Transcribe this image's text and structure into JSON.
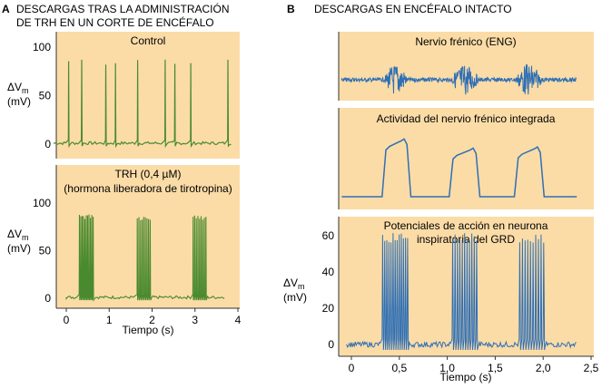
{
  "panel_a": {
    "letter": "A",
    "title_line1": "DESCARGAS TRAS LA ADMINISTRACIÓN",
    "title_line2": "DE TRH EN UN CORTE DE ENCÉFALO",
    "x_label": "Tiempo (s)",
    "x_ticks": [
      "0",
      "1",
      "2",
      "3",
      "4"
    ]
  },
  "panel_b": {
    "letter": "B",
    "title": "DESCARGAS EN ENCÉFALO INTACTO",
    "x_label": "Tiempo (s)",
    "x_ticks": [
      "0",
      "0,5",
      "1,0",
      "1,5",
      "2,0",
      "2,5"
    ]
  },
  "y_label": {
    "main": "ΔV",
    "sub": "m",
    "unit": "(mV)"
  },
  "colors": {
    "panel_bg": "#fbdca7",
    "green_trace": "#4a8a2e",
    "blue_trace": "#2f6fb5",
    "axis": "#333333"
  },
  "chart_data": [
    {
      "type": "line",
      "title": "Control",
      "xlabel": "",
      "ylabel": "ΔVm (mV)",
      "xlim": [
        0,
        3.8
      ],
      "ylim": [
        -5,
        100
      ],
      "yticks": [
        "0",
        "50",
        "100"
      ],
      "baseline": 1,
      "spike_peak": 88,
      "spike_times": [
        0.25,
        0.52,
        1.02,
        1.22,
        1.68,
        2.25,
        2.45,
        2.78,
        3.55
      ]
    },
    {
      "type": "line",
      "title_line1": "TRH (0,4 µM)",
      "title_line2": "(hormona liberadora de tirotropina)",
      "xlabel": "Tiempo (s)",
      "ylabel": "ΔVm (mV)",
      "xlim": [
        -0.2,
        3.8
      ],
      "ylim": [
        -5,
        130
      ],
      "yticks": [
        "0",
        "50",
        "100"
      ],
      "baseline": 1,
      "spike_peak": 88,
      "bursts": [
        {
          "start": 0.3,
          "end": 0.62,
          "n": 11
        },
        {
          "start": 1.65,
          "end": 1.95,
          "n": 9
        },
        {
          "start": 2.95,
          "end": 3.25,
          "n": 9
        }
      ]
    },
    {
      "type": "line",
      "title": "Nervio frénico (ENG)",
      "xlabel": "",
      "ylabel": "",
      "xlim": [
        -0.1,
        2.5
      ],
      "bursts": [
        {
          "start": 0.35,
          "end": 0.58
        },
        {
          "start": 1.05,
          "end": 1.32
        },
        {
          "start": 1.72,
          "end": 1.98
        }
      ]
    },
    {
      "type": "line",
      "title": "Actividad del nervio frénico integrada",
      "xlabel": "",
      "ylabel": "",
      "xlim": [
        -0.1,
        2.5
      ],
      "bursts": [
        {
          "start": 0.32,
          "end": 0.58,
          "peak_level": 0.95
        },
        {
          "start": 1.02,
          "end": 1.3,
          "peak_level": 0.8
        },
        {
          "start": 1.7,
          "end": 1.97,
          "peak_level": 0.82
        }
      ]
    },
    {
      "type": "line",
      "title_line1": "Potenciales de acción en neurona",
      "title_line2": "inspiratoria del GRD",
      "xlabel": "Tiempo (s)",
      "ylabel": "ΔVm (mV)",
      "xlim": [
        -0.1,
        2.5
      ],
      "ylim": [
        -5,
        70
      ],
      "yticks": [
        "0",
        "20",
        "40",
        "60"
      ],
      "baseline": 0,
      "spike_peak": 62,
      "bursts": [
        {
          "start": 0.32,
          "end": 0.58,
          "n": 13
        },
        {
          "start": 1.05,
          "end": 1.3,
          "n": 11
        },
        {
          "start": 1.75,
          "end": 2.0,
          "n": 10
        }
      ]
    }
  ]
}
